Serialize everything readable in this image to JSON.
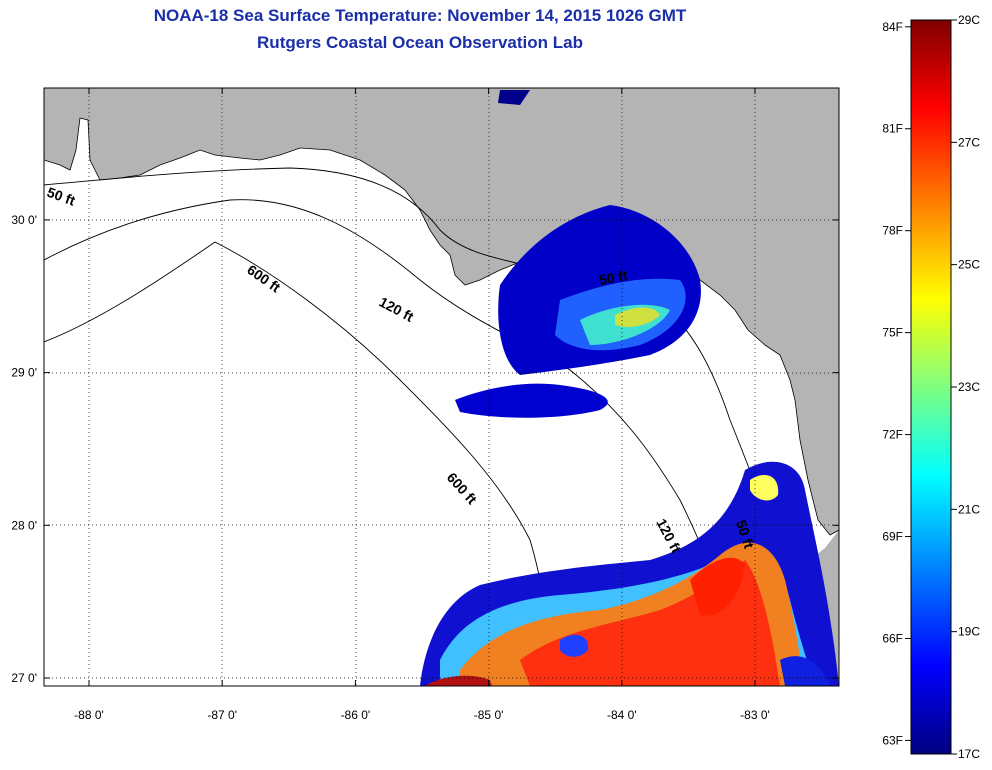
{
  "title": {
    "line1": "NOAA-18 Sea Surface Temperature:  November 14, 2015 1026 GMT",
    "line2": "Rutgers Coastal Ocean Observation Lab"
  },
  "axes": {
    "longitude_ticks": [
      "-88 0'",
      "-87 0'",
      "-86 0'",
      "-85 0'",
      "-84 0'",
      "-83 0'"
    ],
    "latitude_ticks": [
      "27 0'",
      "28 0'",
      "29 0'",
      "30 0'"
    ],
    "lon_values": [
      -88,
      -87,
      -86,
      -85,
      -84,
      -83
    ],
    "lat_values": [
      27,
      28,
      29,
      30
    ]
  },
  "contours": [
    "50 ft",
    "120 ft",
    "600 ft",
    "600 ft",
    "120 ft",
    "50 ft",
    "50 ft"
  ],
  "colorbar": {
    "fahrenheit": [
      "84F",
      "81F",
      "78F",
      "75F",
      "72F",
      "69F",
      "66F",
      "63F"
    ],
    "celsius": [
      "29C",
      "27C",
      "25C",
      "23C",
      "21C",
      "19C",
      "17C"
    ],
    "min_c": 17,
    "max_c": 29,
    "stops": [
      "#00007f",
      "#0000ff",
      "#00ffff",
      "#ffff00",
      "#ff7f00",
      "#ff0000",
      "#7f0000"
    ]
  },
  "colors": {
    "land": "#b4b4b4",
    "ocean": "#ffffff",
    "title": "#1a2fa8"
  }
}
